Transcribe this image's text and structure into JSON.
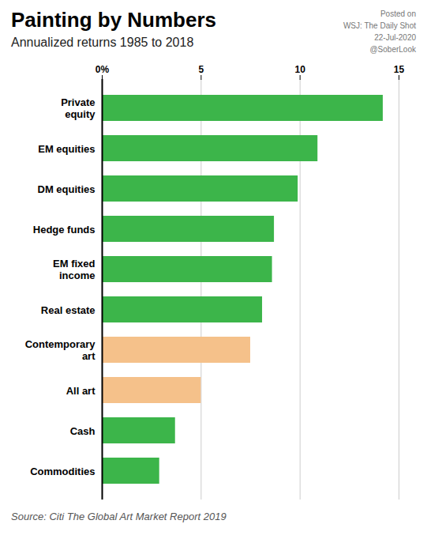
{
  "chart_data": {
    "type": "bar",
    "orientation": "horizontal",
    "title": "Painting by Numbers",
    "subtitle": "Annualized returns 1985 to 2018",
    "annotations": [
      "Posted on",
      "WSJ: The Daily Shot",
      "22-Jul-2020",
      "@SoberLook"
    ],
    "caption": "Source: Citi The Global Art Market Report 2019",
    "categories": [
      "Private\nequity",
      "EM equities",
      "DM equities",
      "Hedge funds",
      "EM fixed\nincome",
      "Real estate",
      "Contemporary\nart",
      "All art",
      "Cash",
      "Commodities"
    ],
    "values": [
      14.2,
      10.9,
      9.9,
      8.7,
      8.6,
      8.1,
      7.5,
      5.0,
      3.7,
      2.9
    ],
    "colors": [
      "#3cb54a",
      "#3cb54a",
      "#3cb54a",
      "#3cb54a",
      "#3cb54a",
      "#3cb54a",
      "#f5c18a",
      "#f5c18a",
      "#3cb54a",
      "#3cb54a"
    ],
    "xlim": [
      0,
      15
    ],
    "xticks": [
      {
        "value": 0,
        "label": "0%"
      },
      5,
      10,
      15
    ],
    "grid": true
  }
}
